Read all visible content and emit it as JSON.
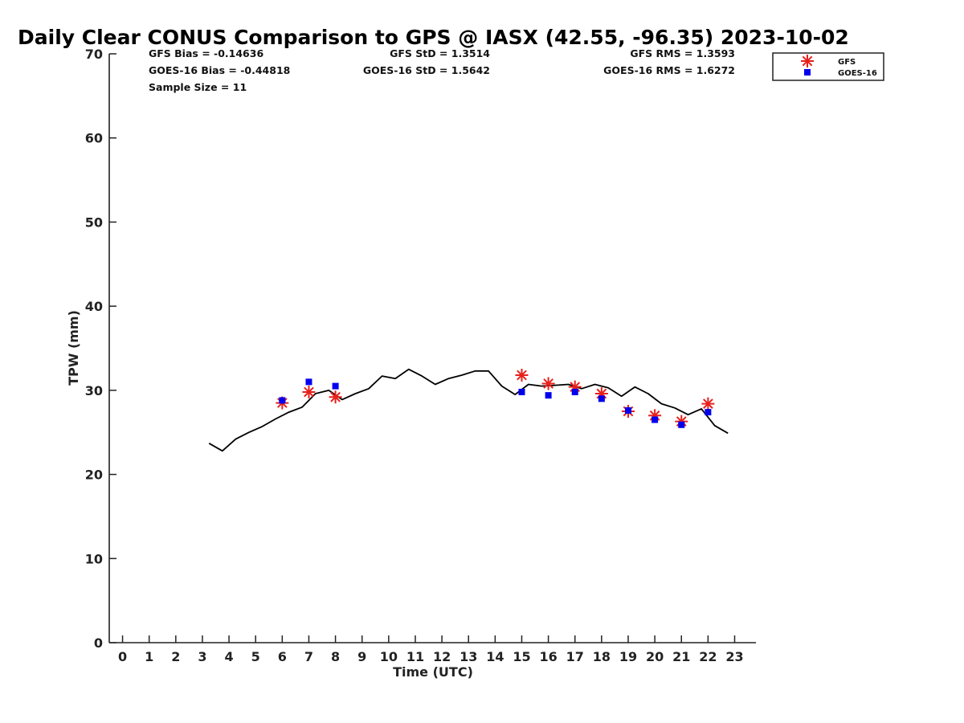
{
  "chart_data": {
    "type": "line",
    "title": "Daily Clear CONUS Comparison to GPS @ IASX (42.55, -96.35) 2023-10-02",
    "xlabel": "Time (UTC)",
    "ylabel": "TPW (mm)",
    "xlim": [
      -0.5,
      23.8
    ],
    "ylim": [
      0,
      70
    ],
    "x_ticks": [
      "0",
      "1",
      "2",
      "3",
      "4",
      "5",
      "6",
      "7",
      "8",
      "9",
      "10",
      "11",
      "12",
      "13",
      "14",
      "15",
      "16",
      "17",
      "18",
      "19",
      "20",
      "21",
      "22",
      "23"
    ],
    "y_ticks": [
      "0",
      "10",
      "20",
      "30",
      "40",
      "50",
      "60",
      "70"
    ],
    "grid": false,
    "legend_position": "top-right",
    "stats": {
      "gfs_bias": "GFS Bias = -0.14636",
      "goes_bias": "GOES-16 Bias = -0.44818",
      "sample_size": "Sample Size = 11",
      "gfs_std": "GFS StD = 1.3514",
      "goes_std": "GOES-16 StD = 1.5642",
      "gfs_rms": "GFS RMS = 1.3593",
      "goes_rms": "GOES-16 RMS = 1.6272"
    },
    "series": [
      {
        "kind": "line",
        "color": "#000000",
        "x": [
          3.25,
          3.75,
          4.25,
          4.75,
          5.25,
          5.75,
          6.25,
          6.75,
          7.25,
          7.75,
          8.25,
          8.75,
          9.25,
          9.75,
          10.25,
          10.75,
          11.25,
          11.75,
          12.25,
          12.75,
          13.25,
          13.75,
          14.25,
          14.75,
          15.25,
          15.75,
          16.25,
          16.75,
          17.25,
          17.75,
          18.25,
          18.75,
          19.25,
          19.75,
          20.25,
          20.75,
          21.25,
          21.75,
          22.25,
          22.75
        ],
        "values": [
          23.7,
          22.8,
          24.2,
          25.0,
          25.7,
          26.6,
          27.4,
          28.0,
          29.6,
          30.0,
          28.9,
          29.6,
          30.2,
          31.7,
          31.4,
          32.5,
          31.7,
          30.7,
          31.4,
          31.8,
          32.3,
          32.3,
          30.5,
          29.5,
          30.7,
          30.5,
          30.6,
          30.7,
          30.2,
          30.7,
          30.3,
          29.3,
          30.4,
          29.6,
          28.4,
          27.9,
          27.1,
          27.8,
          25.8,
          24.9
        ]
      },
      {
        "name": "GFS",
        "kind": "scatter",
        "marker": "asterisk",
        "color": "#e8201c",
        "x": [
          6,
          7,
          8,
          15,
          16,
          17,
          18,
          19,
          20,
          21,
          22
        ],
        "values": [
          28.5,
          29.8,
          29.2,
          31.8,
          30.8,
          30.4,
          29.6,
          27.5,
          27.0,
          26.3,
          28.4
        ]
      },
      {
        "name": "GOES-16",
        "kind": "scatter",
        "marker": "square",
        "color": "#0000ee",
        "x": [
          6,
          7,
          8,
          15,
          16,
          17,
          18,
          19,
          20,
          21,
          22
        ],
        "values": [
          28.8,
          31.0,
          30.5,
          29.8,
          29.4,
          29.8,
          29.0,
          27.6,
          26.5,
          25.9,
          27.4
        ]
      }
    ]
  }
}
